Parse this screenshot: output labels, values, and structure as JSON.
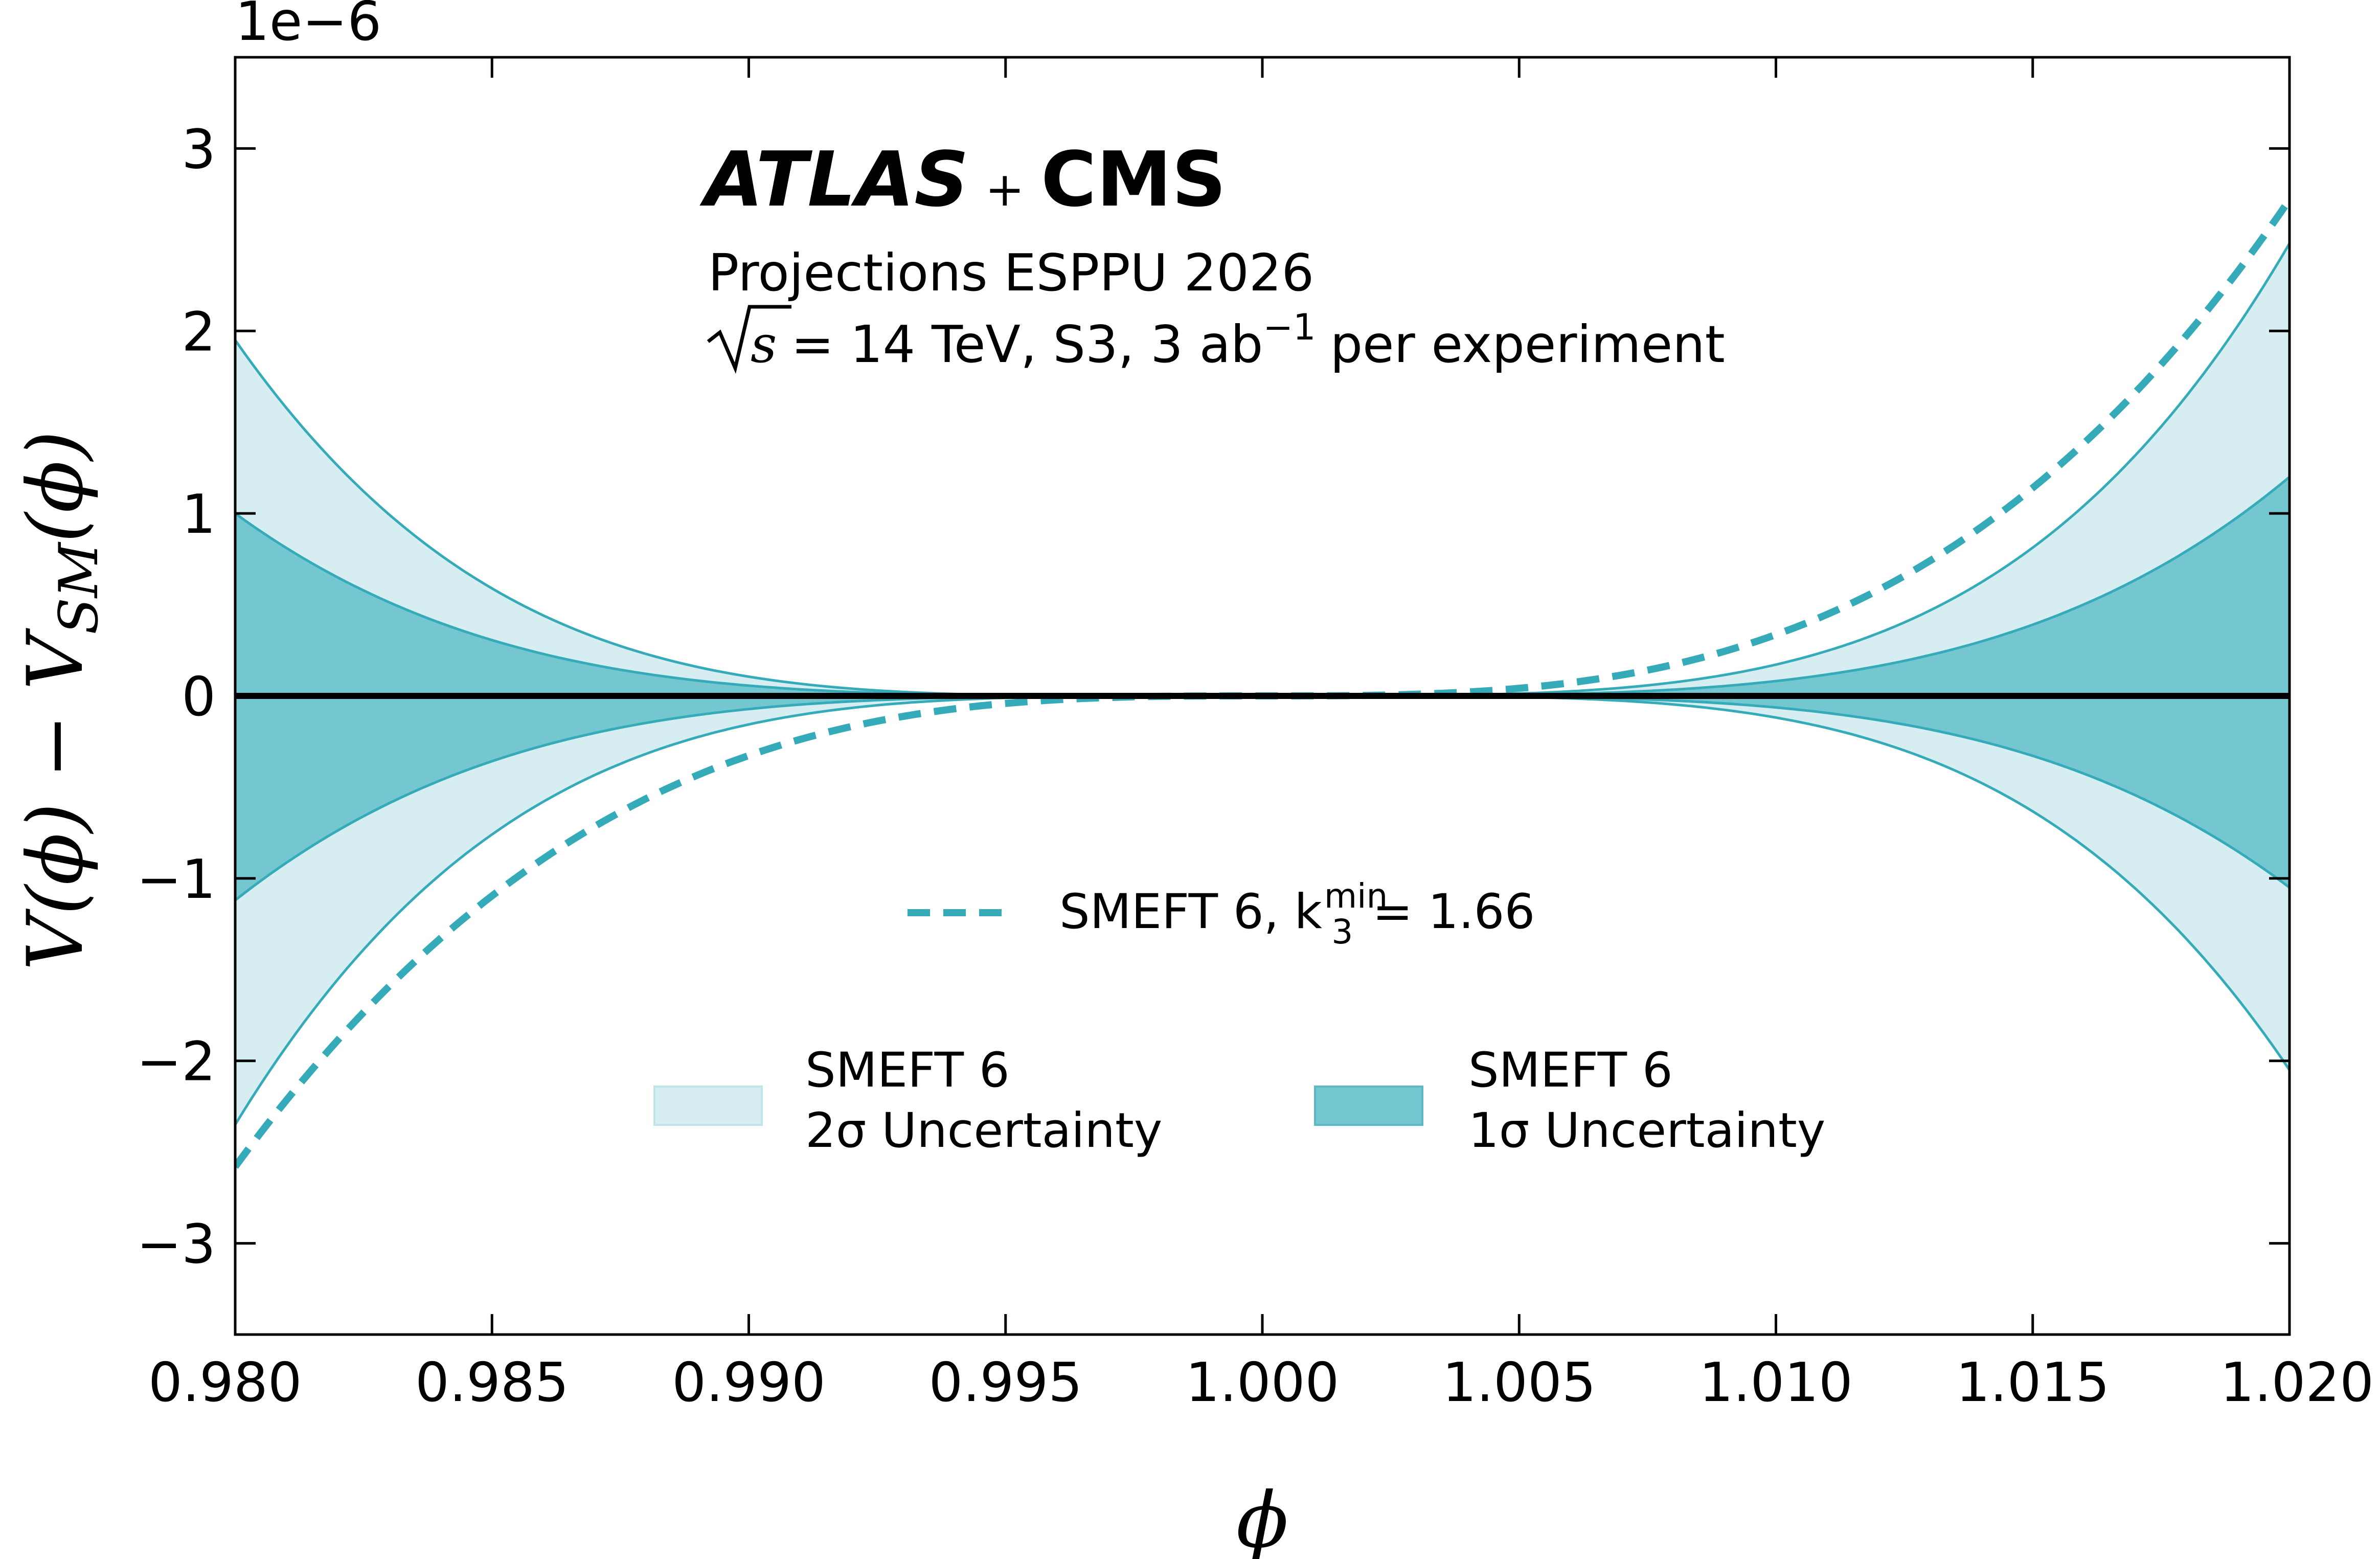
{
  "chart_data": {
    "type": "area",
    "brand_left": "ATLAS",
    "brand_plus": "+",
    "brand_right": "CMS",
    "annotation_line1": "Projections ESPPU 2026",
    "annotation_line2_prefix": "s",
    "annotation_line2": "= 14 TeV, S3, 3 ab",
    "annotation_line2_sup": "−1",
    "annotation_line2_suffix": "per experiment",
    "xlabel": "ϕ",
    "ylabel": "V(ϕ) − V",
    "ylabel_sub": "SM",
    "ylabel_tail": "(ϕ)",
    "y_multiplier": "1e−6",
    "xlim": [
      0.98,
      1.02
    ],
    "ylim": [
      -3.5,
      3.5
    ],
    "x_ticks": [
      "0.980",
      "0.985",
      "0.990",
      "0.995",
      "1.000",
      "1.005",
      "1.010",
      "1.015",
      "1.020"
    ],
    "x_tick_values": [
      0.98,
      0.985,
      0.99,
      0.995,
      1.0,
      1.005,
      1.01,
      1.015,
      1.02
    ],
    "y_ticks": [
      "−3",
      "−2",
      "−1",
      "0",
      "1",
      "2",
      "3"
    ],
    "y_tick_values": [
      -3,
      -2,
      -1,
      0,
      1,
      2,
      3
    ],
    "colors": {
      "band_2sigma": "#d6eef2",
      "band_1sigma": "#74c7d0",
      "edge": "#35abb9",
      "dashed": "#35abb9",
      "sm_line": "#000000"
    },
    "series": [
      {
        "legend": "SMEFT 6, k",
        "legend_sub": "3",
        "legend_sup": "min",
        "legend_tail": "= 1.66",
        "style": "dashed",
        "x": [
          0.98,
          0.99,
          1.0,
          1.01,
          1.02
        ],
        "y": [
          -2.58,
          -0.33,
          0.0,
          0.35,
          2.72
        ]
      }
    ],
    "bands": [
      {
        "legend_line1": "SMEFT 6",
        "legend_line2": "2σ Uncertainty",
        "x": [
          0.98,
          0.99,
          1.0,
          1.01,
          1.02
        ],
        "upper": [
          1.95,
          0.22,
          0.0,
          0.3,
          2.48
        ],
        "lower": [
          -2.35,
          -0.29,
          0.0,
          -0.13,
          -2.05
        ]
      },
      {
        "legend_line1": "SMEFT 6",
        "legend_line2": "1σ Uncertainty",
        "x": [
          0.98,
          0.99,
          1.0,
          1.01,
          1.02
        ],
        "upper": [
          1.0,
          0.12,
          0.0,
          0.15,
          1.2
        ],
        "lower": [
          -1.12,
          -0.14,
          0.0,
          -0.07,
          -1.05
        ]
      }
    ],
    "reference_line": {
      "y": 0
    },
    "legend_placement": "lower-center",
    "grid": false
  }
}
